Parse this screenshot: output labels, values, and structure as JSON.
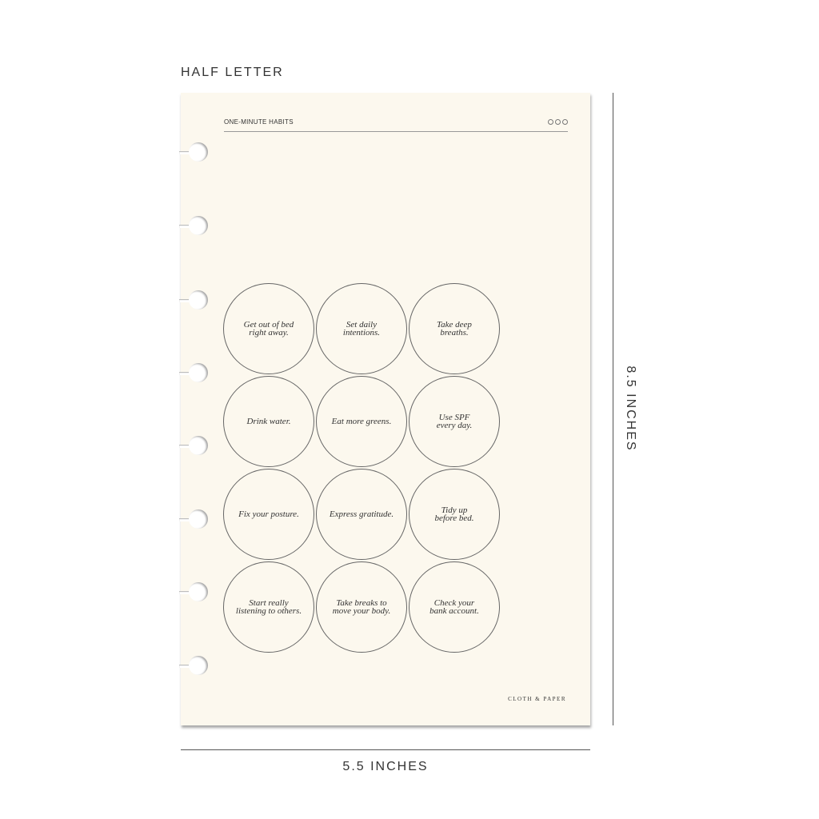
{
  "size_label": "HALF LETTER",
  "page": {
    "title": "ONE-MINUTE HABITS",
    "brand": "CLOTH & PAPER",
    "habits": [
      "Get out of bed\nright away.",
      "Set daily intentions.",
      "Take deep\nbreaths.",
      "Drink water.",
      "Eat more greens.",
      "Use SPF\nevery day.",
      "Fix your posture.",
      "Express gratitude.",
      "Tidy up\nbefore bed.",
      "Start really\nlistening to others.",
      "Take breaks to\nmove your body.",
      "Check your\nbank account."
    ],
    "paper_color": "#fcf8ee"
  },
  "dimensions": {
    "height": "8.5 INCHES",
    "width": "5.5 INCHES"
  }
}
